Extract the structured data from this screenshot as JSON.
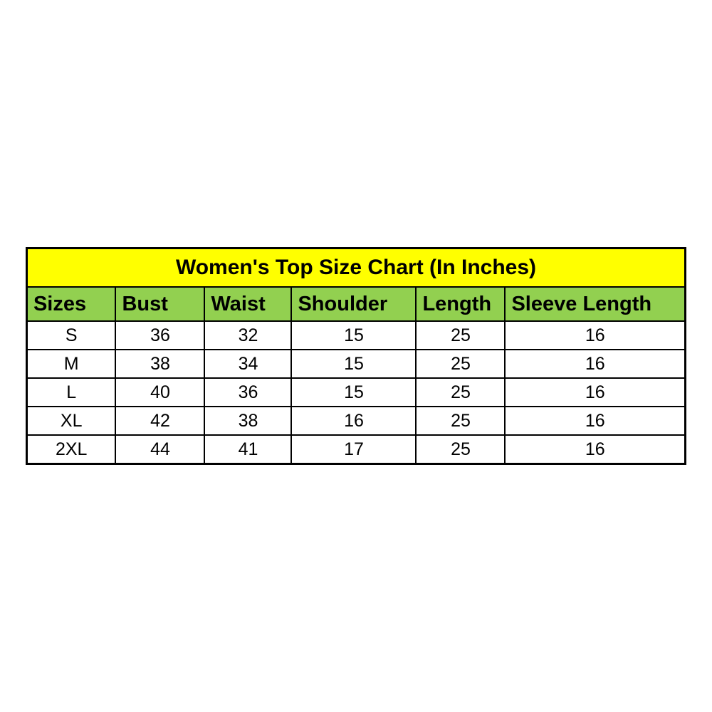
{
  "page": {
    "background": "#ffffff"
  },
  "table": {
    "title": "Women's Top Size Chart (In Inches)",
    "title_bg": "#ffff00",
    "header_bg": "#92d050",
    "row_bg": "#ffffff",
    "border_color": "#000000",
    "text_color": "#000000",
    "columns": [
      "Sizes",
      "Bust",
      "Waist",
      "Shoulder",
      "Length",
      "Sleeve Length"
    ],
    "rows": [
      [
        "S",
        "36",
        "32",
        "15",
        "25",
        "16"
      ],
      [
        "M",
        "38",
        "34",
        "15",
        "25",
        "16"
      ],
      [
        "L",
        "40",
        "36",
        "15",
        "25",
        "16"
      ],
      [
        "XL",
        "42",
        "38",
        "16",
        "25",
        "16"
      ],
      [
        "2XL",
        "44",
        "41",
        "17",
        "25",
        "16"
      ]
    ]
  },
  "chart_data": {
    "type": "table",
    "title": "Women's Top Size Chart (In Inches)",
    "unit": "Inches",
    "columns": [
      "Sizes",
      "Bust",
      "Waist",
      "Shoulder",
      "Length",
      "Sleeve Length"
    ],
    "rows": [
      {
        "size": "S",
        "bust": 36,
        "waist": 32,
        "shoulder": 15,
        "length": 25,
        "sleeve_length": 16
      },
      {
        "size": "M",
        "bust": 38,
        "waist": 34,
        "shoulder": 15,
        "length": 25,
        "sleeve_length": 16
      },
      {
        "size": "L",
        "bust": 40,
        "waist": 36,
        "shoulder": 15,
        "length": 25,
        "sleeve_length": 16
      },
      {
        "size": "XL",
        "bust": 42,
        "waist": 38,
        "shoulder": 16,
        "length": 25,
        "sleeve_length": 16
      },
      {
        "size": "2XL",
        "bust": 44,
        "waist": 41,
        "shoulder": 17,
        "length": 25,
        "sleeve_length": 16
      }
    ]
  }
}
